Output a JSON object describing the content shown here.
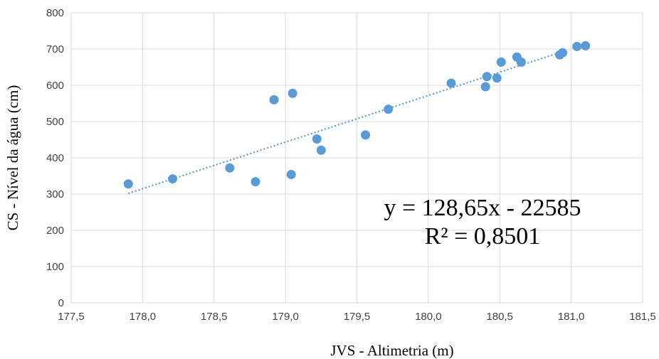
{
  "chart_data": {
    "type": "scatter",
    "title": "",
    "xlabel": "JVS - Altimetria (m)",
    "ylabel": "CS - Nível da água (cm)",
    "xlim": [
      177.5,
      181.5
    ],
    "ylim": [
      0,
      800
    ],
    "x_ticks": [
      "177,5",
      "178,0",
      "178,5",
      "179,0",
      "179,5",
      "180,0",
      "180,5",
      "181,0",
      "181,5"
    ],
    "y_ticks": [
      "0",
      "100",
      "200",
      "300",
      "400",
      "500",
      "600",
      "700",
      "800"
    ],
    "grid": true,
    "marker_color": "#5B9BD5",
    "series": [
      {
        "x": [
          177.9,
          178.21,
          178.61,
          178.79,
          178.92,
          179.04,
          179.05,
          179.22,
          179.25,
          179.56,
          179.72,
          180.16,
          180.4,
          180.41,
          180.48,
          180.51,
          180.62,
          180.65,
          180.92,
          180.94,
          181.04,
          181.1
        ],
        "y": [
          328,
          342,
          372,
          334,
          560,
          354,
          578,
          452,
          421,
          463,
          534,
          606,
          596,
          624,
          620,
          664,
          678,
          664,
          684,
          690,
          707,
          709
        ]
      }
    ],
    "trendline": {
      "type": "linear",
      "style": "dotted",
      "color": "#5B9BD5",
      "x_range": [
        177.9,
        180.94
      ],
      "equation": "y = 128,65x - 22585",
      "r_squared": "R² = 0,8501"
    }
  }
}
